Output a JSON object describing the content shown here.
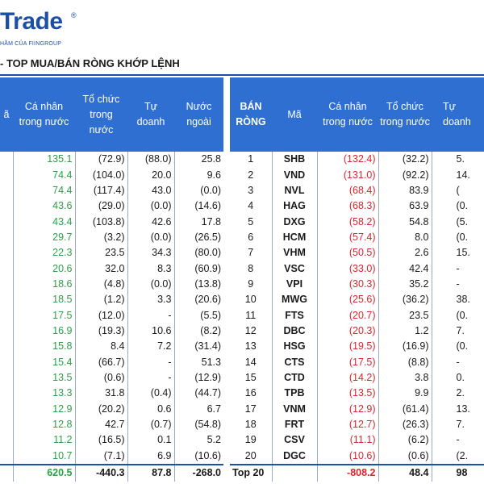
{
  "brand": {
    "logo_text": "Trade",
    "reg": "®",
    "tagline": "HẦM CỦA FIINGROUP",
    "accent": "#2f6fd1",
    "buy_color": "#2e9e47",
    "sell_color": "#d9262c"
  },
  "title": "- TOP MUA/BÁN RÒNG KHỚP LỆNH",
  "buy": {
    "headers": {
      "code": "ã",
      "individual": "Cá nhân trong nước",
      "institution": "Tổ chức trong nước",
      "proprietary": "Tự doanh",
      "foreign": "Nước ngoài"
    },
    "rows": [
      [
        "135.1",
        "(72.9)",
        "(88.0)",
        "25.8"
      ],
      [
        "74.4",
        "(104.0)",
        "20.0",
        "9.6"
      ],
      [
        "74.4",
        "(117.4)",
        "43.0",
        "(0.0)"
      ],
      [
        "43.6",
        "(29.0)",
        "(0.0)",
        "(14.6)"
      ],
      [
        "43.4",
        "(103.8)",
        "42.6",
        "17.8"
      ],
      [
        "29.7",
        "(3.2)",
        "(0.0)",
        "(26.5)"
      ],
      [
        "22.3",
        "23.5",
        "34.3",
        "(80.0)"
      ],
      [
        "20.6",
        "32.0",
        "8.3",
        "(60.9)"
      ],
      [
        "18.6",
        "(4.8)",
        "(0.0)",
        "(13.8)"
      ],
      [
        "18.5",
        "(1.2)",
        "3.3",
        "(20.6)"
      ],
      [
        "17.5",
        "(12.0)",
        "-",
        "(5.5)"
      ],
      [
        "16.9",
        "(19.3)",
        "10.6",
        "(8.2)"
      ],
      [
        "15.8",
        "8.4",
        "7.2",
        "(31.4)"
      ],
      [
        "15.4",
        "(66.7)",
        "-",
        "51.3"
      ],
      [
        "13.5",
        "(0.6)",
        "-",
        "(12.9)"
      ],
      [
        "13.3",
        "31.8",
        "(0.4)",
        "(44.7)"
      ],
      [
        "12.9",
        "(20.2)",
        "0.6",
        "6.7"
      ],
      [
        "12.8",
        "42.7",
        "(0.7)",
        "(54.8)"
      ],
      [
        "11.2",
        "(16.5)",
        "0.1",
        "5.2"
      ],
      [
        "10.7",
        "(7.1)",
        "6.9",
        "(10.6)"
      ]
    ],
    "total": [
      "620.5",
      "-440.3",
      "87.8",
      "-268.0"
    ]
  },
  "sell": {
    "headers": {
      "rank": "BÁN RÒNG",
      "code": "Mã",
      "individual": "Cá nhân trong nước",
      "institution": "Tổ chức trong nước",
      "proprietary": "Tự doanh"
    },
    "rows": [
      [
        "1",
        "SHB",
        "(132.4)",
        "(32.2)",
        "5."
      ],
      [
        "2",
        "VND",
        "(131.0)",
        "(92.2)",
        "14."
      ],
      [
        "3",
        "NVL",
        "(68.4)",
        "83.9",
        "("
      ],
      [
        "4",
        "HAG",
        "(68.3)",
        "63.9",
        "(0."
      ],
      [
        "5",
        "DXG",
        "(58.2)",
        "54.8",
        "(5."
      ],
      [
        "6",
        "HCM",
        "(57.4)",
        "8.0",
        "(0."
      ],
      [
        "7",
        "VHM",
        "(50.5)",
        "2.6",
        "15."
      ],
      [
        "8",
        "VSC",
        "(33.0)",
        "42.4",
        "-"
      ],
      [
        "9",
        "VPI",
        "(30.3)",
        "35.2",
        "-"
      ],
      [
        "10",
        "MWG",
        "(25.6)",
        "(36.2)",
        "38."
      ],
      [
        "11",
        "FTS",
        "(20.7)",
        "23.5",
        "(0."
      ],
      [
        "12",
        "DBC",
        "(20.3)",
        "1.2",
        "7."
      ],
      [
        "13",
        "HSG",
        "(19.5)",
        "(16.9)",
        "(0."
      ],
      [
        "14",
        "CTS",
        "(17.5)",
        "(8.8)",
        "-"
      ],
      [
        "15",
        "CTD",
        "(14.2)",
        "3.8",
        "0."
      ],
      [
        "16",
        "TPB",
        "(13.5)",
        "9.9",
        "2."
      ],
      [
        "17",
        "VNM",
        "(12.9)",
        "(61.4)",
        "13."
      ],
      [
        "18",
        "FRT",
        "(12.7)",
        "(26.3)",
        "7."
      ],
      [
        "19",
        "CSV",
        "(11.1)",
        "(6.2)",
        "-"
      ],
      [
        "20",
        "DGC",
        "(10.6)",
        "(0.6)",
        "(2."
      ]
    ],
    "total": [
      "Top 20",
      "",
      "-808.2",
      "48.4",
      "98"
    ]
  }
}
